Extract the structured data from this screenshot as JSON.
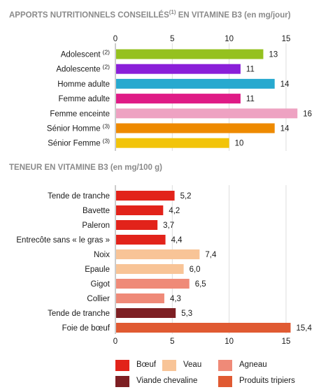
{
  "chart_data": [
    {
      "type": "bar",
      "orientation": "horizontal",
      "title": "APPORTS NUTRITIONNELS CONSEILLÉS",
      "title_note": "(1)",
      "title_suffix": "EN VITAMINE B3 (en mg/jour)",
      "categories": [
        "Adolescent",
        "Adolescente",
        "Homme adulte",
        "Femme adulte",
        "Femme enceinte",
        "Sénior Homme",
        "Sénior Femme"
      ],
      "category_notes": [
        "(2)",
        "(2)",
        "",
        "",
        "",
        "(3)",
        "(3)"
      ],
      "values": [
        13,
        11,
        14,
        11,
        16,
        14,
        10
      ],
      "value_labels": [
        "13",
        "11",
        "14",
        "11",
        "16",
        "14",
        "10"
      ],
      "colors": [
        "#95c11f",
        "#8a1fd9",
        "#27a9cf",
        "#df1b86",
        "#eea2c2",
        "#ee8a00",
        "#f2c40a"
      ],
      "xlim": [
        0,
        15
      ],
      "xticks": [
        "0",
        "5",
        "10",
        "15"
      ],
      "xticks_position": "top",
      "grid": true
    },
    {
      "type": "bar",
      "orientation": "horizontal",
      "title": "TENEUR EN VITAMINE B3 (en mg/100 g)",
      "categories": [
        "Tende de tranche",
        "Bavette",
        "Paleron",
        "Entrecôte sans « le gras »",
        "Noix",
        "Epaule",
        "Gigot",
        "Collier",
        "Tende de tranche",
        "Foie de bœuf"
      ],
      "values": [
        5.2,
        4.2,
        3.7,
        4.4,
        7.4,
        6.0,
        6.5,
        4.3,
        5.3,
        15.4
      ],
      "value_labels": [
        "5,2",
        "4,2",
        "3,7",
        "4,4",
        "7,4",
        "6,0",
        "6,5",
        "4,3",
        "5,3",
        "15,4"
      ],
      "groups": [
        "Bœuf",
        "Bœuf",
        "Bœuf",
        "Bœuf",
        "Veau",
        "Veau",
        "Agneau",
        "Agneau",
        "Viande chevaline",
        "Produits tripiers"
      ],
      "group_colors": {
        "Bœuf": "#e2231a",
        "Veau": "#f8c497",
        "Agneau": "#ef8a78",
        "Viande chevaline": "#7d1f23",
        "Produits tripiers": "#e05a32"
      },
      "xlim": [
        0,
        15
      ],
      "xticks": [
        "0",
        "5",
        "10",
        "15"
      ],
      "xticks_position": "bottom",
      "grid": true,
      "legend": [
        {
          "label": "Bœuf",
          "color": "#e2231a"
        },
        {
          "label": "Veau",
          "color": "#f8c497"
        },
        {
          "label": "Agneau",
          "color": "#ef8a78"
        },
        {
          "label": "Viande chevaline",
          "color": "#7d1f23"
        },
        {
          "label": "Produits tripiers",
          "color": "#e05a32"
        }
      ],
      "legend_placement": "bottom"
    }
  ]
}
